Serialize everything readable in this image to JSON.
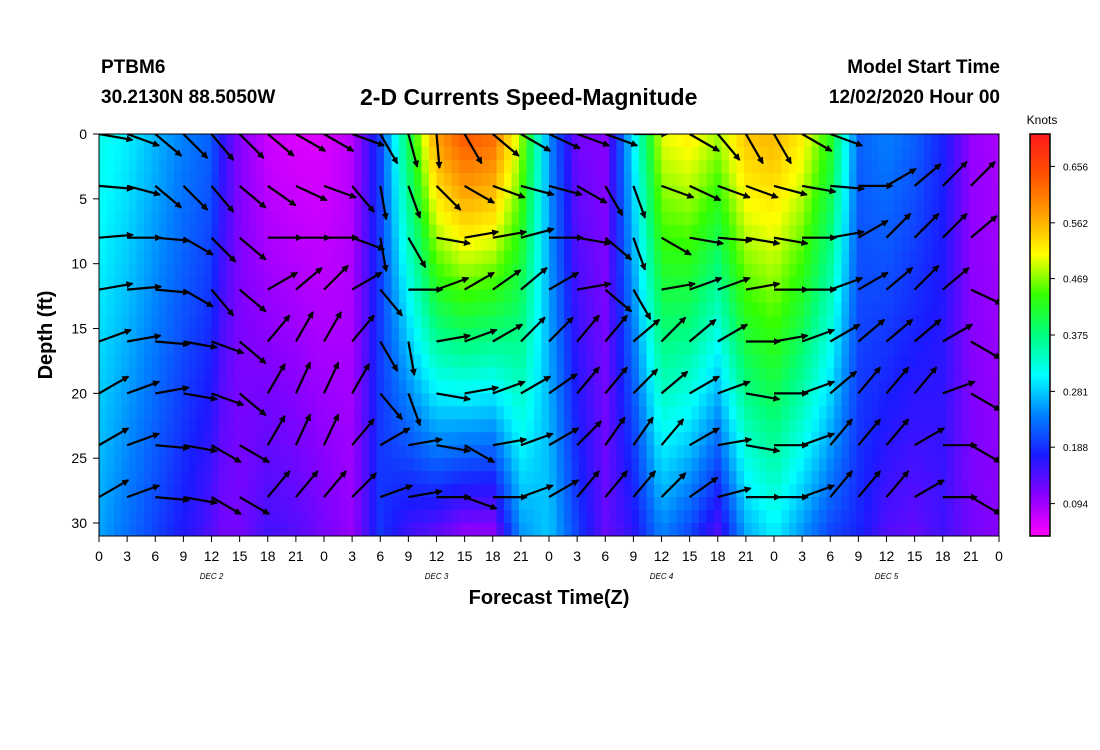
{
  "header": {
    "station_id": "PTBM6",
    "coordinates": "30.2130N 88.5050W",
    "title": "2-D Currents Speed-Magnitude",
    "start_label": "Model Start Time",
    "start_value": "12/02/2020 Hour 00"
  },
  "chart_data": {
    "type": "heatmap",
    "title": "2-D Currents Speed-Magnitude",
    "xlabel": "Forecast Time(Z)",
    "ylabel": "Depth (ft)",
    "x_ticks": [
      "0",
      "3",
      "6",
      "9",
      "12",
      "15",
      "18",
      "21",
      "0",
      "3",
      "6",
      "9",
      "12",
      "15",
      "18",
      "21",
      "0",
      "3",
      "6",
      "9",
      "12",
      "15",
      "18",
      "21",
      "0",
      "3",
      "6",
      "9",
      "12",
      "15",
      "18",
      "21",
      "0"
    ],
    "day_labels": [
      "DEC 2",
      "DEC 3",
      "DEC 4",
      "DEC 5"
    ],
    "y_ticks": [
      "0",
      "5",
      "10",
      "15",
      "20",
      "25",
      "30"
    ],
    "y_range": [
      0,
      31
    ],
    "x_range_hours": [
      0,
      96
    ],
    "colorbar": {
      "unit": "Knots",
      "labels": [
        "0.656",
        "0.562",
        "0.469",
        "0.375",
        "0.281",
        "0.188",
        "0.094"
      ],
      "range": [
        0.04,
        0.71
      ],
      "colors": [
        "#ff00ff",
        "#8a00ff",
        "#1a1aff",
        "#0080ff",
        "#00ffff",
        "#00ff80",
        "#33ff00",
        "#ffff00",
        "#ffa000",
        "#ff5000",
        "#ff1a1a"
      ]
    },
    "speed_profile_by_hour": {
      "hours": [
        0,
        3,
        6,
        9,
        12,
        13,
        15,
        18,
        21,
        24,
        27,
        30,
        33,
        36,
        39,
        42,
        45,
        48,
        51,
        54,
        57,
        60,
        63,
        66,
        69,
        72,
        75,
        78,
        81,
        84,
        87,
        90,
        93,
        96
      ],
      "surface": [
        0.32,
        0.3,
        0.27,
        0.24,
        0.22,
        0.17,
        0.11,
        0.07,
        0.06,
        0.06,
        0.08,
        0.2,
        0.4,
        0.58,
        0.64,
        0.62,
        0.48,
        0.25,
        0.12,
        0.11,
        0.3,
        0.5,
        0.52,
        0.48,
        0.55,
        0.56,
        0.52,
        0.43,
        0.22,
        0.24,
        0.22,
        0.18,
        0.1,
        0.09
      ],
      "bottom": [
        0.26,
        0.23,
        0.2,
        0.17,
        0.14,
        0.12,
        0.12,
        0.15,
        0.14,
        0.12,
        0.1,
        0.19,
        0.15,
        0.13,
        0.1,
        0.1,
        0.25,
        0.28,
        0.2,
        0.13,
        0.16,
        0.24,
        0.2,
        0.14,
        0.26,
        0.3,
        0.25,
        0.2,
        0.18,
        0.14,
        0.13,
        0.15,
        0.12,
        0.11
      ]
    },
    "vector_depths_ft": [
      0,
      4,
      8,
      12,
      16,
      20,
      24,
      28
    ],
    "vector_hours": [
      0,
      3,
      6,
      9,
      12,
      15,
      18,
      21,
      24,
      27,
      30,
      33,
      36,
      39,
      42,
      45,
      48,
      51,
      54,
      57,
      60,
      63,
      66,
      69,
      72,
      75,
      78,
      81,
      84,
      87,
      90,
      93,
      96
    ],
    "vector_directions_deg": [
      [
        100,
        110,
        130,
        135,
        140,
        135,
        130,
        120,
        120,
        110,
        150,
        165,
        175,
        150,
        130,
        120,
        115,
        110,
        110,
        90,
        80,
        120,
        140,
        150,
        150,
        120,
        110,
        70,
        40,
        35,
        40,
        50,
        140
      ],
      [
        95,
        105,
        130,
        135,
        140,
        130,
        125,
        115,
        110,
        140,
        170,
        160,
        135,
        120,
        110,
        105,
        105,
        120,
        150,
        160,
        110,
        115,
        110,
        110,
        105,
        100,
        95,
        90,
        60,
        50,
        45,
        45,
        100
      ],
      [
        85,
        90,
        95,
        120,
        135,
        130,
        90,
        90,
        90,
        110,
        170,
        150,
        100,
        80,
        80,
        75,
        90,
        100,
        130,
        160,
        120,
        100,
        95,
        100,
        100,
        90,
        80,
        60,
        45,
        45,
        45,
        50,
        130
      ],
      [
        80,
        85,
        95,
        120,
        140,
        130,
        60,
        50,
        45,
        60,
        140,
        90,
        70,
        60,
        55,
        50,
        60,
        80,
        130,
        150,
        80,
        70,
        70,
        80,
        90,
        90,
        70,
        60,
        50,
        45,
        50,
        115,
        135
      ],
      [
        70,
        80,
        95,
        100,
        110,
        130,
        40,
        30,
        30,
        40,
        150,
        170,
        80,
        70,
        60,
        45,
        45,
        40,
        40,
        50,
        45,
        50,
        60,
        90,
        80,
        70,
        60,
        50,
        50,
        50,
        60,
        120,
        140
      ],
      [
        60,
        70,
        80,
        100,
        110,
        130,
        30,
        25,
        25,
        30,
        140,
        160,
        100,
        80,
        70,
        60,
        55,
        40,
        40,
        45,
        50,
        60,
        70,
        100,
        90,
        70,
        50,
        40,
        40,
        40,
        70,
        120,
        140
      ],
      [
        60,
        70,
        95,
        100,
        120,
        120,
        30,
        25,
        25,
        40,
        60,
        80,
        100,
        120,
        80,
        70,
        60,
        45,
        35,
        35,
        40,
        60,
        80,
        100,
        90,
        70,
        40,
        40,
        40,
        60,
        90,
        120,
        140
      ],
      [
        60,
        70,
        95,
        100,
        120,
        120,
        40,
        40,
        40,
        45,
        70,
        80,
        90,
        110,
        90,
        70,
        60,
        40,
        40,
        40,
        45,
        55,
        75,
        90,
        90,
        70,
        40,
        40,
        40,
        60,
        90,
        120,
        140
      ]
    ]
  }
}
